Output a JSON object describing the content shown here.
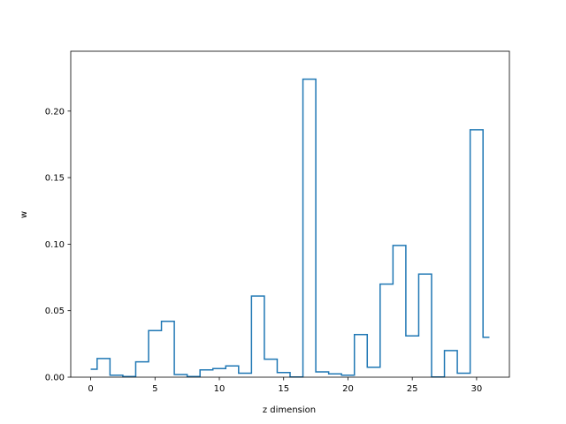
{
  "chart_data": {
    "type": "line",
    "style": "step",
    "title": "",
    "xlabel": "z dimension",
    "ylabel": "w",
    "xlim": [
      -1.55,
      32.55
    ],
    "ylim": [
      0,
      0.245
    ],
    "xticks": [
      0,
      5,
      10,
      15,
      20,
      25,
      30
    ],
    "yticks": [
      0.0,
      0.05,
      0.1,
      0.15,
      0.2
    ],
    "ytick_labels": [
      "0.00",
      "0.05",
      "0.10",
      "0.15",
      "0.20"
    ],
    "grid": false,
    "line_color": "#1f77b4",
    "series": [
      {
        "x": [
          0,
          1,
          2,
          3,
          4,
          5,
          6,
          7,
          8,
          9,
          10,
          11,
          12,
          13,
          14,
          15,
          16,
          17,
          18,
          19,
          20,
          21,
          22,
          23,
          24,
          25,
          26,
          27,
          28,
          29,
          30,
          31
        ],
        "values": [
          0.006,
          0.014,
          0.0015,
          0.0005,
          0.0115,
          0.035,
          0.042,
          0.002,
          0.0005,
          0.0055,
          0.0065,
          0.0085,
          0.003,
          0.061,
          0.0135,
          0.0035,
          0.0002,
          0.224,
          0.004,
          0.0025,
          0.0015,
          0.032,
          0.0075,
          0.07,
          0.099,
          0.031,
          0.0775,
          0.0002,
          0.02,
          0.003,
          0.186,
          0.03
        ]
      }
    ]
  }
}
